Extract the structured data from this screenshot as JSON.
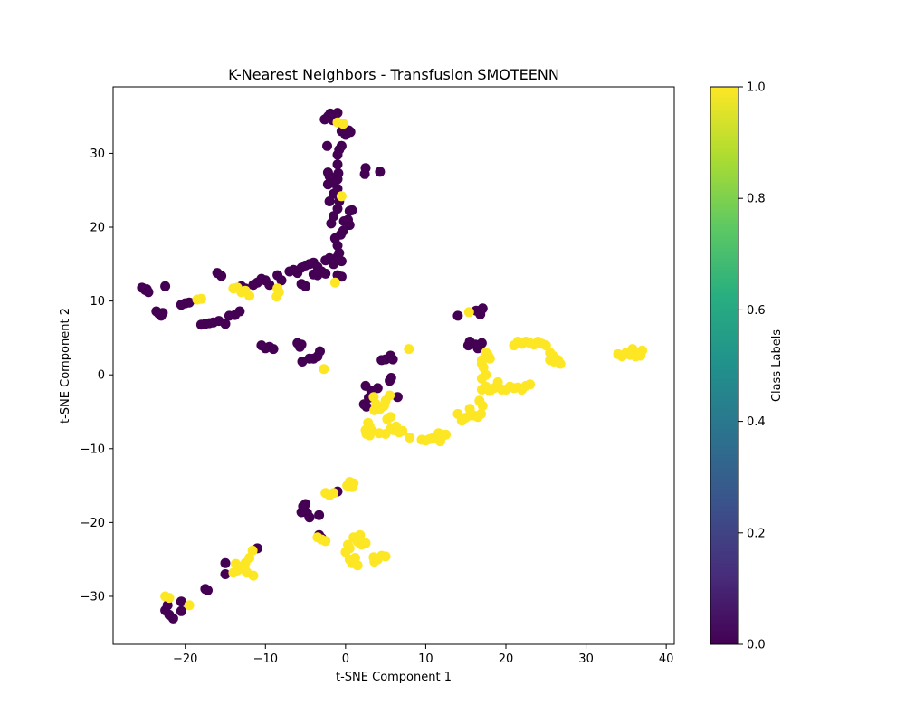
{
  "chart_data": {
    "type": "scatter",
    "title": "K-Nearest Neighbors - Transfusion SMOTEENN",
    "xlabel": "t-SNE Component 1",
    "ylabel": "t-SNE Component 2",
    "xlim": [
      -29,
      41
    ],
    "ylim": [
      -36.5,
      39
    ],
    "xticks": [
      -20,
      -10,
      0,
      10,
      20,
      30,
      40
    ],
    "yticks": [
      -30,
      -20,
      -10,
      0,
      10,
      20,
      30
    ],
    "grid": false,
    "colormap": "viridis",
    "colorbar": {
      "label": "Class Labels",
      "range": [
        0.0,
        1.0
      ],
      "ticks": [
        "0.0",
        "0.2",
        "0.4",
        "0.6",
        "0.8",
        "1.0"
      ]
    },
    "colors": {
      "class_0": "#440154",
      "class_1": "#fde725"
    },
    "series": [
      {
        "class": 0,
        "points": [
          [
            -25,
            11.5
          ],
          [
            -24.6,
            11.2
          ],
          [
            -25.4,
            11.8
          ],
          [
            -24.8,
            11.6
          ],
          [
            -23.3,
            8.3
          ],
          [
            -23,
            8
          ],
          [
            -23.6,
            8.6
          ],
          [
            -22.8,
            8.4
          ],
          [
            -22.5,
            12
          ],
          [
            -20.5,
            9.5
          ],
          [
            -20,
            9.7
          ],
          [
            -19.5,
            9.8
          ],
          [
            -18,
            6.8
          ],
          [
            -17.5,
            6.9
          ],
          [
            -17,
            7
          ],
          [
            -16.5,
            7.1
          ],
          [
            -15.8,
            7.3
          ],
          [
            -15,
            6.9
          ],
          [
            -14.5,
            8
          ],
          [
            -13.8,
            8.1
          ],
          [
            -13.2,
            8.6
          ],
          [
            -16,
            13.8
          ],
          [
            -15.5,
            13.4
          ],
          [
            -13,
            12
          ],
          [
            -12.5,
            11.7
          ],
          [
            -11.5,
            12.2
          ],
          [
            -11,
            12.5
          ],
          [
            -10.5,
            13
          ],
          [
            -10,
            12.8
          ],
          [
            -9.5,
            12.2
          ],
          [
            -8.5,
            13.5
          ],
          [
            -8,
            12.8
          ],
          [
            -7,
            14
          ],
          [
            -6.5,
            14.2
          ],
          [
            -6,
            13.8
          ],
          [
            -5.5,
            14.5
          ],
          [
            -5,
            14.8
          ],
          [
            -4.5,
            15
          ],
          [
            -4,
            15.2
          ],
          [
            -3.5,
            14.6
          ],
          [
            -3,
            14
          ],
          [
            -2.5,
            15.5
          ],
          [
            -2,
            15.8
          ],
          [
            -1.5,
            15
          ],
          [
            -1,
            16
          ],
          [
            -0.5,
            15.4
          ],
          [
            -2.5,
            13.7
          ],
          [
            -3.5,
            13.5
          ],
          [
            -4,
            13.6
          ],
          [
            -5,
            12
          ],
          [
            -5.5,
            12.3
          ],
          [
            -1,
            13.5
          ],
          [
            -0.5,
            13.3
          ],
          [
            -1.3,
            18.5
          ],
          [
            -0.6,
            19
          ],
          [
            -0.3,
            19.5
          ],
          [
            -1,
            17.5
          ],
          [
            -0.8,
            16.5
          ],
          [
            -1.8,
            20.5
          ],
          [
            -0.2,
            20.8
          ],
          [
            0.3,
            21
          ],
          [
            0.5,
            20.3
          ],
          [
            0.5,
            22.2
          ],
          [
            0.8,
            22.3
          ],
          [
            -1.5,
            21.5
          ],
          [
            -1,
            22.5
          ],
          [
            -0.8,
            23.5
          ],
          [
            -2,
            23.5
          ],
          [
            -1.5,
            24.5
          ],
          [
            -1,
            25.2
          ],
          [
            -1.5,
            26
          ],
          [
            -2.2,
            25.8
          ],
          [
            -1,
            26.5
          ],
          [
            -0.9,
            27.3
          ],
          [
            -2,
            26.9
          ],
          [
            -2.2,
            27.4
          ],
          [
            -1,
            28.5
          ],
          [
            -1,
            29.8
          ],
          [
            -0.8,
            30.5
          ],
          [
            -0.5,
            31
          ],
          [
            -2.3,
            31
          ],
          [
            -2.2,
            35
          ],
          [
            -2.6,
            34.6
          ],
          [
            -1.9,
            35.4
          ],
          [
            -1.6,
            34.5
          ],
          [
            -1,
            35.5
          ],
          [
            -0.5,
            33
          ],
          [
            0,
            32.5
          ],
          [
            0.4,
            33.1
          ],
          [
            0.6,
            32.9
          ],
          [
            2.5,
            28
          ],
          [
            2.4,
            27.2
          ],
          [
            4.3,
            27.5
          ],
          [
            -10.5,
            4
          ],
          [
            -10,
            3.6
          ],
          [
            -9.5,
            3.8
          ],
          [
            -9,
            3.5
          ],
          [
            -6,
            4.3
          ],
          [
            -5.7,
            3.8
          ],
          [
            -5.5,
            4.1
          ],
          [
            -5.4,
            1.8
          ],
          [
            -4.5,
            2.2
          ],
          [
            -4,
            2.2
          ],
          [
            -3.5,
            2.5
          ],
          [
            -3.2,
            3.2
          ],
          [
            4.5,
            2
          ],
          [
            5,
            2.1
          ],
          [
            5.6,
            2.6
          ],
          [
            5.9,
            2.1
          ],
          [
            5.7,
            -0.4
          ],
          [
            5.5,
            -0.8
          ],
          [
            6.5,
            -3
          ],
          [
            2.5,
            -1.5
          ],
          [
            2.9,
            -3.1
          ],
          [
            3.2,
            -2.2
          ],
          [
            4,
            -1.8
          ],
          [
            2.3,
            -4
          ],
          [
            2.6,
            -4.3
          ],
          [
            14,
            8
          ],
          [
            16.3,
            8.7
          ],
          [
            16.8,
            8.2
          ],
          [
            17.1,
            9
          ],
          [
            15.5,
            4.5
          ],
          [
            15.3,
            4
          ],
          [
            16.2,
            4.1
          ],
          [
            17,
            4.3
          ],
          [
            16.5,
            3.6
          ],
          [
            -1,
            -15.8
          ],
          [
            -5,
            -17.5
          ],
          [
            -5.3,
            -17.8
          ],
          [
            -5.5,
            -18.6
          ],
          [
            -4.8,
            -18.7
          ],
          [
            -4.5,
            -19.3
          ],
          [
            -3.3,
            -19
          ],
          [
            -3.3,
            -21.7
          ],
          [
            -3,
            -22.1
          ],
          [
            -11,
            -23.5
          ],
          [
            -15,
            -25.5
          ],
          [
            -15,
            -27
          ],
          [
            -17.5,
            -29
          ],
          [
            -17.2,
            -29.2
          ],
          [
            -20.5,
            -30.7
          ],
          [
            -22.2,
            -31.2
          ],
          [
            -22.5,
            -31.9
          ],
          [
            -22,
            -32.5
          ],
          [
            -21.5,
            -33
          ],
          [
            -20.5,
            -32
          ]
        ]
      },
      {
        "class": 1,
        "points": [
          [
            -1,
            34.2
          ],
          [
            -0.3,
            34
          ],
          [
            -0.5,
            24.2
          ],
          [
            -1.3,
            12.5
          ],
          [
            -18.5,
            10.2
          ],
          [
            -18,
            10.3
          ],
          [
            -14,
            11.7
          ],
          [
            -13.5,
            11.8
          ],
          [
            -13,
            11.2
          ],
          [
            -12.5,
            11.4
          ],
          [
            -12,
            10.7
          ],
          [
            -8.5,
            11.7
          ],
          [
            -8.3,
            11.2
          ],
          [
            -8.6,
            10.6
          ],
          [
            -2.7,
            0.8
          ],
          [
            7.9,
            3.5
          ],
          [
            15.4,
            8.5
          ],
          [
            3.5,
            -3
          ],
          [
            3.8,
            -4
          ],
          [
            4.3,
            -4.6
          ],
          [
            4.8,
            -4.2
          ],
          [
            5,
            -3.5
          ],
          [
            5.5,
            -2.8
          ],
          [
            3.6,
            -4.8
          ],
          [
            5.2,
            -6
          ],
          [
            5.6,
            -5.7
          ],
          [
            2.8,
            -6.5
          ],
          [
            3,
            -7
          ],
          [
            2.5,
            -7.5
          ],
          [
            2.6,
            -8
          ],
          [
            3,
            -8.2
          ],
          [
            3.3,
            -7.6
          ],
          [
            4.2,
            -7.9
          ],
          [
            5,
            -8
          ],
          [
            5.7,
            -7.2
          ],
          [
            6,
            -7.5
          ],
          [
            6.3,
            -7
          ],
          [
            6.7,
            -7.8
          ],
          [
            7.1,
            -7.6
          ],
          [
            8,
            -8.5
          ],
          [
            9.5,
            -8.8
          ],
          [
            10,
            -8.9
          ],
          [
            10.5,
            -8.7
          ],
          [
            11,
            -8.5
          ],
          [
            11.5,
            -8.6
          ],
          [
            12,
            -8.4
          ],
          [
            11.6,
            -7.9
          ],
          [
            12.5,
            -8.1
          ],
          [
            11.8,
            -9
          ],
          [
            14,
            -5.3
          ],
          [
            14.5,
            -6.2
          ],
          [
            15,
            -5.8
          ],
          [
            15.5,
            -5.5
          ],
          [
            15.5,
            -4.6
          ],
          [
            16,
            -5.5
          ],
          [
            16.5,
            -5.7
          ],
          [
            16.9,
            -5.3
          ],
          [
            17.1,
            -4.2
          ],
          [
            16.7,
            -3.5
          ],
          [
            17,
            -2
          ],
          [
            17.5,
            -1.6
          ],
          [
            18,
            -2.2
          ],
          [
            18.5,
            -1.8
          ],
          [
            19,
            -1.5
          ],
          [
            19.5,
            -2
          ],
          [
            19,
            -1
          ],
          [
            20,
            -2
          ],
          [
            20.5,
            -1.6
          ],
          [
            21,
            -1.8
          ],
          [
            21.5,
            -1.7
          ],
          [
            22,
            -2
          ],
          [
            22.5,
            -1.5
          ],
          [
            23,
            -1.3
          ],
          [
            17,
            -0.5
          ],
          [
            17.5,
            0
          ],
          [
            17.2,
            1
          ],
          [
            17,
            2
          ],
          [
            17.5,
            3
          ],
          [
            17,
            1.5
          ],
          [
            18,
            2.2
          ],
          [
            17.8,
            2.6
          ],
          [
            21,
            4
          ],
          [
            21.5,
            4.5
          ],
          [
            22,
            4.2
          ],
          [
            22.5,
            4.5
          ],
          [
            23,
            4.3
          ],
          [
            23.5,
            4.1
          ],
          [
            24,
            4.5
          ],
          [
            24.5,
            4.2
          ],
          [
            25,
            4
          ],
          [
            25.5,
            3
          ],
          [
            26,
            2.5
          ],
          [
            26.5,
            2
          ],
          [
            26.8,
            1.5
          ],
          [
            25.5,
            2
          ],
          [
            26,
            1.8
          ],
          [
            34,
            2.8
          ],
          [
            34.5,
            2.5
          ],
          [
            35,
            3
          ],
          [
            35.5,
            2.7
          ],
          [
            36,
            3.2
          ],
          [
            36.5,
            2.9
          ],
          [
            37,
            3.3
          ],
          [
            36.2,
            2.5
          ],
          [
            35.8,
            3.5
          ],
          [
            36.8,
            2.6
          ],
          [
            -2.5,
            -16
          ],
          [
            -2,
            -16.3
          ],
          [
            -1.5,
            -16
          ],
          [
            0.2,
            -15
          ],
          [
            0.5,
            -14.5
          ],
          [
            0.8,
            -15.2
          ],
          [
            1,
            -14.7
          ],
          [
            -3.5,
            -22
          ],
          [
            -3,
            -22.3
          ],
          [
            -2.5,
            -22.5
          ],
          [
            0,
            -24
          ],
          [
            0.5,
            -23.5
          ],
          [
            1,
            -22
          ],
          [
            1.5,
            -22.6
          ],
          [
            1.8,
            -21.7
          ],
          [
            0.5,
            -25
          ],
          [
            0.8,
            -25.5
          ],
          [
            1.2,
            -24.8
          ],
          [
            1.5,
            -25.8
          ],
          [
            0.3,
            -23
          ],
          [
            2,
            -23
          ],
          [
            2.5,
            -22.8
          ],
          [
            3.5,
            -24.7
          ],
          [
            4,
            -25
          ],
          [
            4.5,
            -24.5
          ],
          [
            5,
            -24.6
          ],
          [
            3.6,
            -25.3
          ],
          [
            -13.5,
            -26.5
          ],
          [
            -13,
            -26
          ],
          [
            -12.5,
            -26.5
          ],
          [
            -12.5,
            -25.5
          ],
          [
            -12,
            -24.8
          ],
          [
            -12.3,
            -26.8
          ],
          [
            -11.5,
            -27.2
          ],
          [
            -11.6,
            -23.8
          ],
          [
            -14,
            -26.8
          ],
          [
            -13.7,
            -25.6
          ],
          [
            -22.5,
            -30
          ],
          [
            -22,
            -30.2
          ],
          [
            -19.5,
            -31.2
          ]
        ]
      }
    ]
  }
}
